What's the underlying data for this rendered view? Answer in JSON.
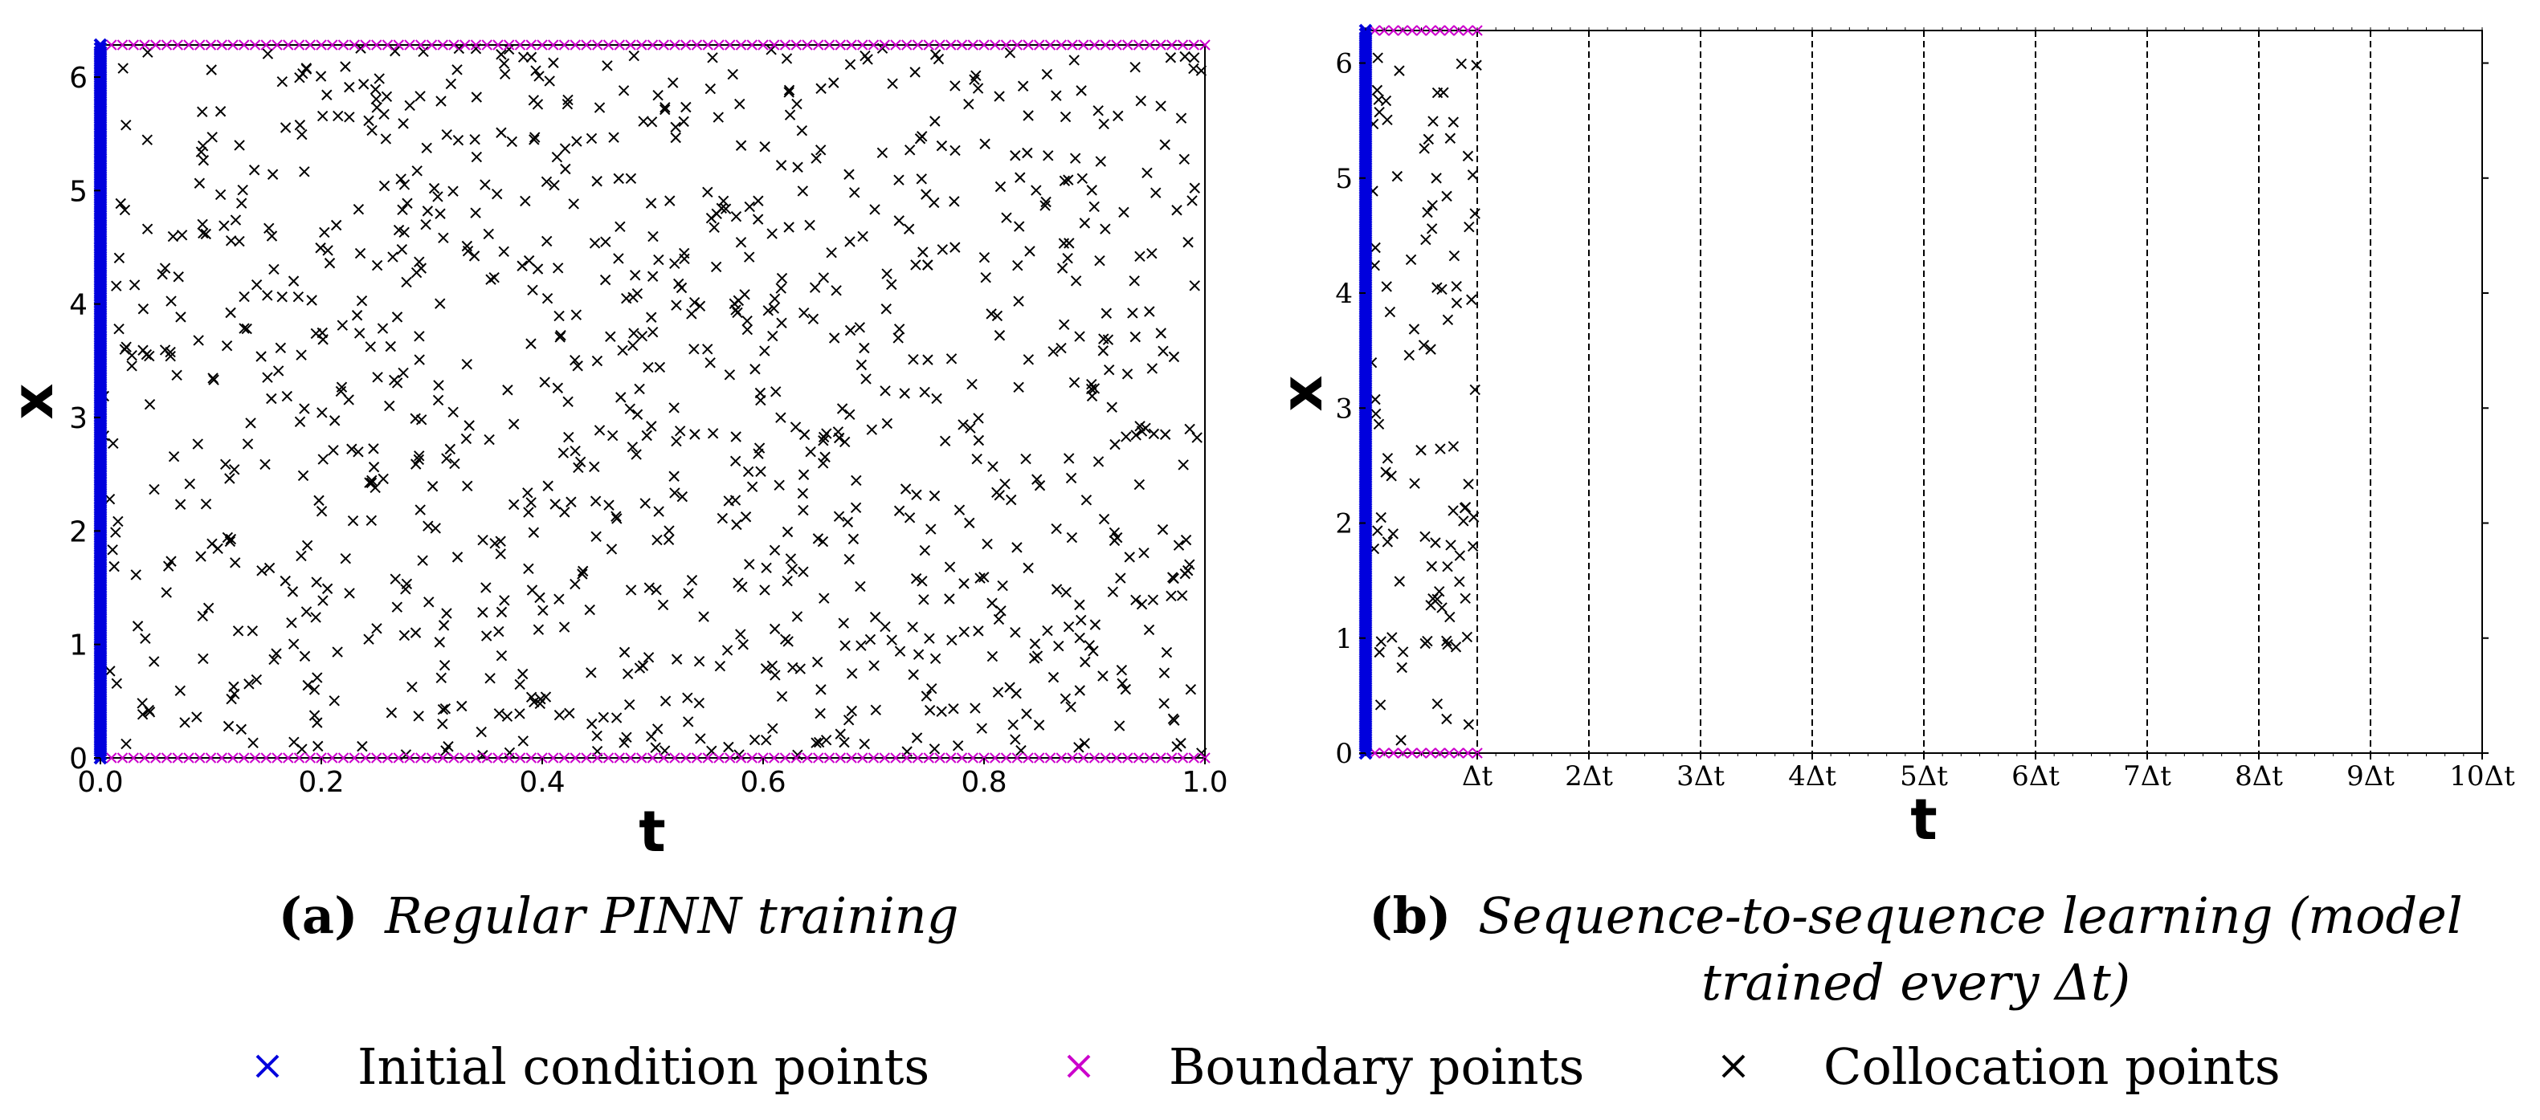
{
  "colors": {
    "initial": "#0000dd",
    "boundary": "#cc00cc",
    "collocation": "#000000"
  },
  "chart_data": [
    {
      "type": "scatter",
      "panel": "a",
      "caption_letter": "(a)",
      "caption_text": "Regular PINN training",
      "xlabel": "t",
      "ylabel": "x",
      "xlim": [
        0,
        1
      ],
      "ylim": [
        0,
        6.283
      ],
      "xticks": [
        "0.0",
        "0.2",
        "0.4",
        "0.6",
        "0.8",
        "1.0"
      ],
      "yticks": [
        "0",
        "1",
        "2",
        "3",
        "4",
        "5",
        "6"
      ],
      "series": [
        {
          "name": "Initial condition points",
          "description": "dense points along t = 0 for x in [0, 2π]"
        },
        {
          "name": "Boundary points",
          "description": "dense points along x = 0 and x = 2π for t in [0, 1]"
        },
        {
          "name": "Collocation points",
          "description": "about 1000 uniformly random points in [0,1] × [0,2π]"
        }
      ],
      "collocation_count": 1000,
      "boundary_count_per_edge": 100
    },
    {
      "type": "scatter",
      "panel": "b",
      "caption_letter": "(b)",
      "caption_text_line1": "Sequence-to-sequence learning (model",
      "caption_text_line2": "trained every Δt)",
      "xlabel": "t",
      "ylabel": "x",
      "xlim": [
        0,
        10
      ],
      "ylim": [
        0,
        6.283
      ],
      "xticks": [
        "Δt",
        "2Δt",
        "3Δt",
        "4Δt",
        "5Δt",
        "6Δt",
        "7Δt",
        "8Δt",
        "9Δt",
        "10Δt"
      ],
      "yticks": [
        "0",
        "1",
        "2",
        "3",
        "4",
        "5",
        "6"
      ],
      "dashed_lines_at": [
        1,
        2,
        3,
        4,
        5,
        6,
        7,
        8,
        9
      ],
      "active_interval": [
        0,
        1
      ],
      "collocation_count": 100,
      "boundary_count_per_edge": 12
    }
  ],
  "legend": {
    "items": [
      {
        "label": "Initial condition points",
        "color": "#0000dd"
      },
      {
        "label": "Boundary points",
        "color": "#cc00cc"
      },
      {
        "label": "Collocation points",
        "color": "#000000"
      }
    ]
  }
}
